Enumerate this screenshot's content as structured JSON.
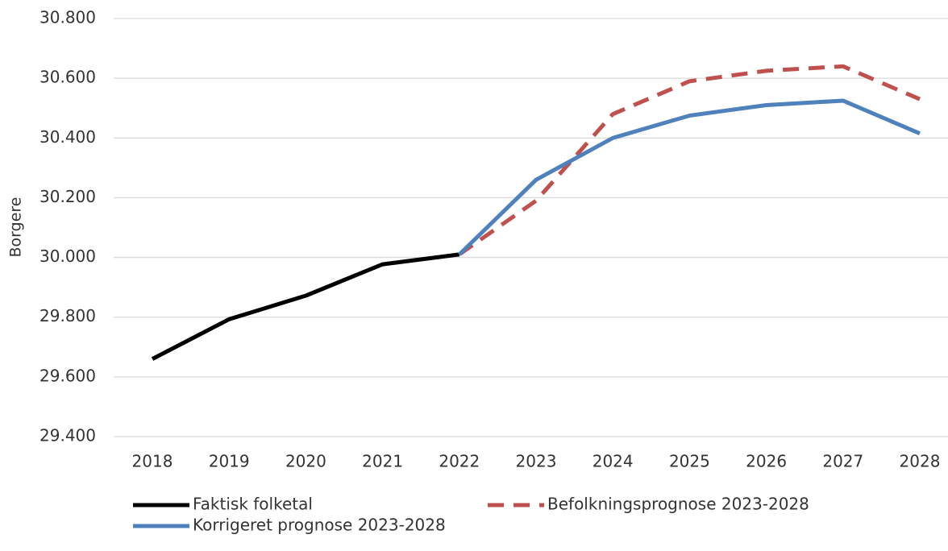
{
  "chart_data": {
    "type": "line",
    "y_label": "Borgere",
    "categories": [
      "2018",
      "2019",
      "2020",
      "2021",
      "2022",
      "2023",
      "2024",
      "2025",
      "2026",
      "2027",
      "2028"
    ],
    "series": [
      {
        "name": "Faktisk folketal",
        "color": "#000000",
        "dash": false,
        "values": [
          29660,
          29793,
          29872,
          29977,
          30010,
          null,
          null,
          null,
          null,
          null,
          null
        ]
      },
      {
        "name": "Befolkningsprognose 2023-2028",
        "color": "#c0504d",
        "dash": true,
        "values": [
          null,
          null,
          null,
          null,
          30010,
          30190,
          30480,
          30590,
          30625,
          30640,
          30530
        ]
      },
      {
        "name": "Korrigeret prognose 2023-2028",
        "color": "#4f81bd",
        "dash": false,
        "values": [
          null,
          null,
          null,
          null,
          30010,
          30260,
          30400,
          30475,
          30510,
          30525,
          30415
        ]
      }
    ],
    "ylim": [
      29400,
      30800
    ],
    "yticks": [
      {
        "value": 29400,
        "label": "29.400"
      },
      {
        "value": 29600,
        "label": "29.600"
      },
      {
        "value": 29800,
        "label": "29.800"
      },
      {
        "value": 30000,
        "label": "30.000"
      },
      {
        "value": 30200,
        "label": "30.200"
      },
      {
        "value": 30400,
        "label": "30.400"
      },
      {
        "value": 30600,
        "label": "30.600"
      },
      {
        "value": 30800,
        "label": "30.800"
      }
    ],
    "grid": true,
    "legend": "bottom"
  }
}
